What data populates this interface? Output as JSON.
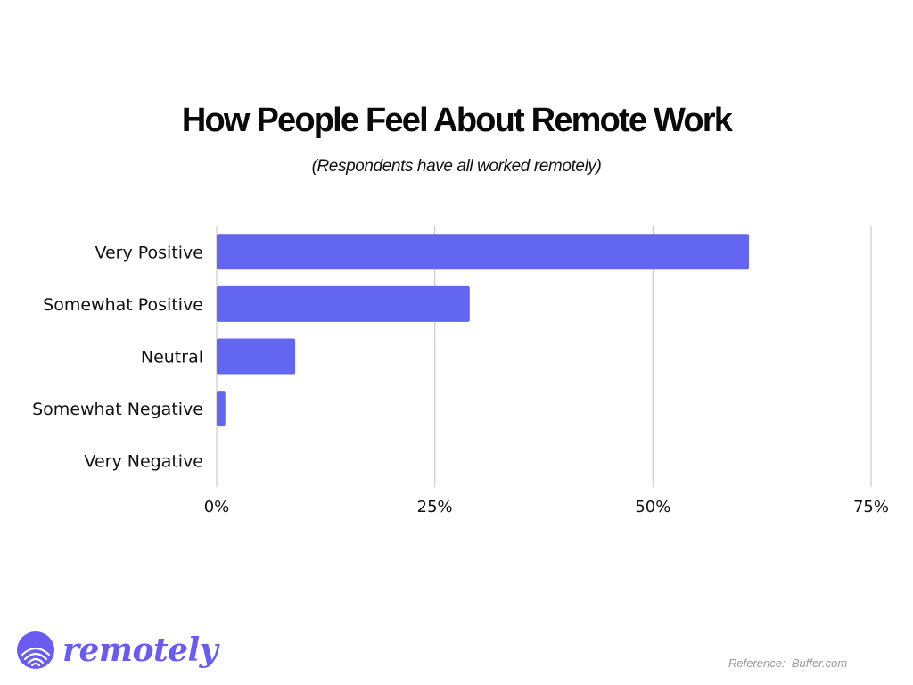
{
  "chart_data": {
    "type": "bar",
    "orientation": "horizontal",
    "title": "How People Feel  About Remote Work",
    "subtitle": "(Respondents have all worked remotely)",
    "categories": [
      "Very Positive",
      "Somewhat Positive",
      "Neutral",
      "Somewhat Negative",
      "Very Negative"
    ],
    "values": [
      61,
      29,
      9,
      1,
      0
    ],
    "value_unit": "%",
    "xlim": [
      0,
      75
    ],
    "x_ticks": [
      0,
      25,
      50,
      75
    ],
    "x_tick_labels": [
      "0%",
      "25%",
      "50%",
      "75%"
    ],
    "grid": "vertical",
    "bar_color": "#6366f1",
    "grid_color": "#cccccc",
    "legend": "none"
  },
  "brand": {
    "name": "remotely",
    "color": "#6a5cf0",
    "icon": "remotely-logo-icon"
  },
  "footer": {
    "reference": "Reference:  Buffer.com"
  }
}
